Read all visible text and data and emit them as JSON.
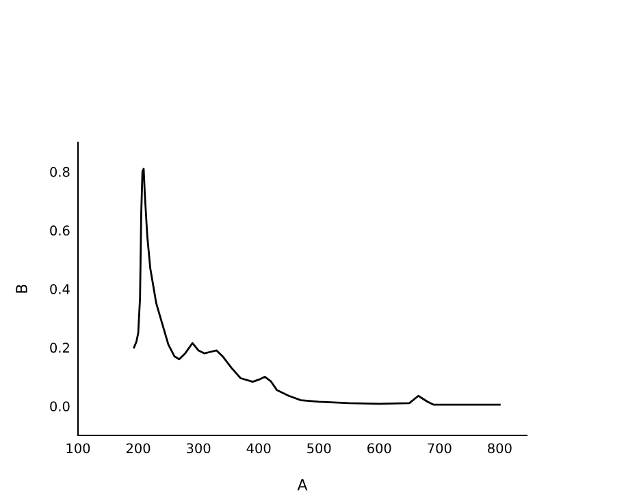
{
  "chart_data": {
    "type": "line",
    "xlabel": "A",
    "ylabel": "B",
    "xlim": [
      100,
      845
    ],
    "ylim": [
      -0.1,
      0.9
    ],
    "xticks": [
      100,
      200,
      300,
      400,
      500,
      600,
      700,
      800
    ],
    "yticks": [
      {
        "value": 0,
        "label": "0.0"
      },
      0.2,
      0.4,
      0.6,
      0.8
    ],
    "grid": false,
    "marker": "none",
    "line_style": "solid",
    "series": [
      {
        "color": "#000000",
        "x": [
          193,
          197,
          200,
          203,
          205,
          207,
          209,
          211,
          215,
          220,
          230,
          240,
          250,
          260,
          268,
          278,
          290,
          300,
          310,
          320,
          330,
          340,
          355,
          370,
          390,
          400,
          410,
          420,
          430,
          450,
          470,
          500,
          550,
          600,
          650,
          665,
          680,
          690,
          800
        ],
        "values": [
          0.2,
          0.22,
          0.25,
          0.37,
          0.66,
          0.8,
          0.81,
          0.72,
          0.58,
          0.47,
          0.35,
          0.28,
          0.21,
          0.17,
          0.16,
          0.18,
          0.215,
          0.19,
          0.18,
          0.185,
          0.19,
          0.17,
          0.13,
          0.095,
          0.083,
          0.09,
          0.1,
          0.085,
          0.055,
          0.035,
          0.02,
          0.015,
          0.01,
          0.008,
          0.01,
          0.035,
          0.015,
          0.005,
          0.005
        ]
      }
    ]
  }
}
